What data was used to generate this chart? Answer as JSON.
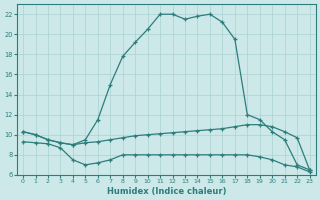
{
  "xlabel": "Humidex (Indice chaleur)",
  "background_color": "#cce8e8",
  "line_color": "#2d7d7d",
  "grid_color": "#b0d4d4",
  "xlim": [
    -0.5,
    23.5
  ],
  "ylim": [
    6,
    23
  ],
  "xticks": [
    0,
    1,
    2,
    3,
    4,
    5,
    6,
    7,
    8,
    9,
    10,
    11,
    12,
    13,
    14,
    15,
    16,
    17,
    18,
    19,
    20,
    21,
    22,
    23
  ],
  "yticks": [
    6,
    8,
    10,
    12,
    14,
    16,
    18,
    20,
    22
  ],
  "lines": [
    {
      "x": [
        0,
        1,
        2,
        3,
        4,
        5,
        6,
        7,
        8,
        9,
        10,
        11,
        12,
        13,
        14,
        15,
        16,
        17,
        18,
        19,
        20,
        21,
        22,
        23
      ],
      "y": [
        10.3,
        10.0,
        9.5,
        9.2,
        9.0,
        9.5,
        11.5,
        15.0,
        17.8,
        19.2,
        20.5,
        22.0,
        22.0,
        21.5,
        21.8,
        22.0,
        21.2,
        19.5,
        12.0,
        11.5,
        10.3,
        9.5,
        7.0,
        6.5
      ]
    },
    {
      "x": [
        0,
        1,
        2,
        3,
        4,
        5,
        6,
        7,
        8,
        9,
        10,
        11,
        12,
        13,
        14,
        15,
        16,
        17,
        18,
        19,
        20,
        21,
        22,
        23
      ],
      "y": [
        10.3,
        10.0,
        9.5,
        9.2,
        9.0,
        9.2,
        9.3,
        9.5,
        9.7,
        9.9,
        10.0,
        10.1,
        10.2,
        10.3,
        10.4,
        10.5,
        10.6,
        10.8,
        11.0,
        11.0,
        10.8,
        10.3,
        9.7,
        6.5
      ]
    },
    {
      "x": [
        0,
        1,
        2,
        3,
        4,
        5,
        6,
        7,
        8,
        9,
        10,
        11,
        12,
        13,
        14,
        15,
        16,
        17,
        18,
        19,
        20,
        21,
        22,
        23
      ],
      "y": [
        9.3,
        9.2,
        9.1,
        8.7,
        7.5,
        7.0,
        7.2,
        7.5,
        8.0,
        8.0,
        8.0,
        8.0,
        8.0,
        8.0,
        8.0,
        8.0,
        8.0,
        8.0,
        8.0,
        7.8,
        7.5,
        7.0,
        6.8,
        6.3
      ]
    }
  ]
}
